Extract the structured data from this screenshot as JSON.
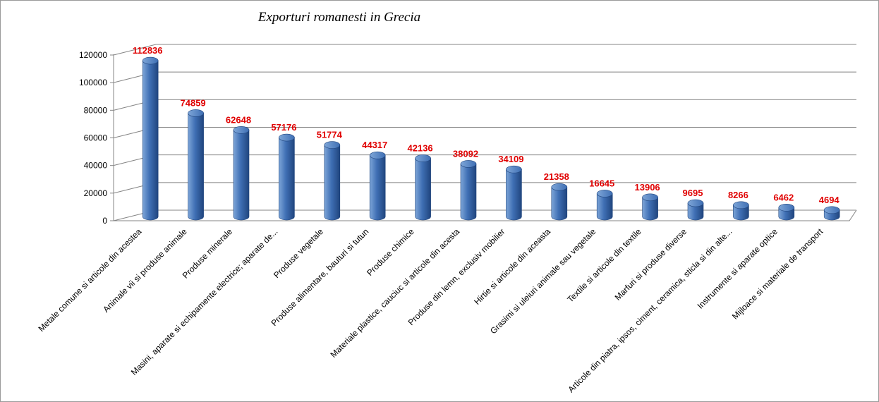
{
  "chart_data": {
    "type": "bar",
    "title": "Exporturi romanesti in Grecia",
    "xlabel": "",
    "ylabel": "",
    "ylim": [
      0,
      120000
    ],
    "yticks": [
      0,
      20000,
      40000,
      60000,
      80000,
      100000,
      120000
    ],
    "ytick_labels": [
      "0",
      "20000",
      "40000",
      "60000",
      "80000",
      "100000",
      "120000"
    ],
    "grid": true,
    "legend": "none",
    "categories": [
      "Metale comune si articole din acestea",
      "Animale vii si produse animale",
      "Produse minerale",
      "Masini, aparate si echipamente electrice; aparate de...",
      "Produse vegetale",
      "Produse alimentare, bauturi si tutun",
      "Produse chimice",
      "Materiale plastice, cauciuc si articole din acesta",
      "Produse din lemn, exclusiv mobilier",
      "Hirtie si articole din aceasta",
      "Grasimi si uleiuri animale sau vegetale",
      "Textile si articole din textile",
      "Marfuri si produse diverse",
      "Articole din piatra, ipsos, ciment, ceramica, sticla si din alte...",
      "Instrumente si aparate optice",
      "Mijloace si materiale de transport"
    ],
    "values": [
      112836,
      74859,
      62648,
      57176,
      51774,
      44317,
      42136,
      38092,
      34109,
      21358,
      16645,
      13906,
      9695,
      8266,
      6462,
      4694
    ],
    "data_labels": [
      "112836",
      "74859",
      "62648",
      "57176",
      "51774",
      "44317",
      "42136",
      "38092",
      "34109",
      "21358",
      "16645",
      "13906",
      "9695",
      "8266",
      "6462",
      "4694"
    ],
    "colors": {
      "bar_light": "#7ea6d8",
      "bar_mid": "#3f6fb4",
      "bar_dark": "#20457e",
      "data_label": "#e00000",
      "grid": "#858585"
    }
  }
}
